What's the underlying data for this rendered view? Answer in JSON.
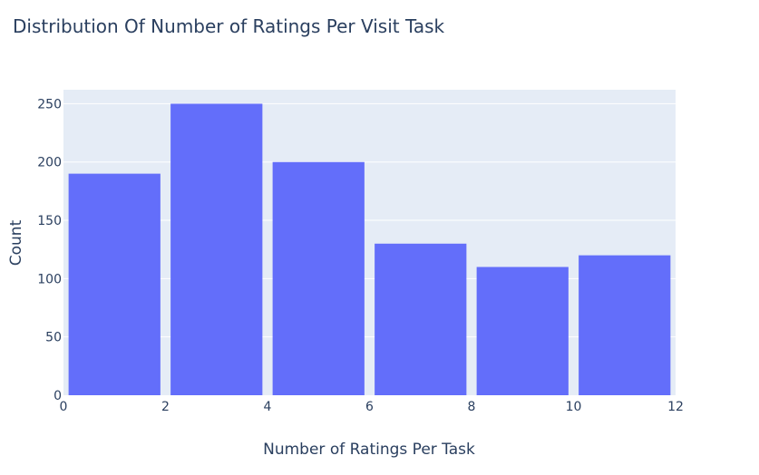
{
  "chart_data": {
    "type": "bar",
    "title": "Distribution Of Number of Ratings Per Visit Task",
    "xlabel": "Number of Ratings Per Task",
    "ylabel": "Count",
    "bins": [
      {
        "x0": 0,
        "x1": 2,
        "value": 190
      },
      {
        "x0": 2,
        "x1": 4,
        "value": 250
      },
      {
        "x0": 4,
        "x1": 6,
        "value": 200
      },
      {
        "x0": 6,
        "x1": 8,
        "value": 130
      },
      {
        "x0": 8,
        "x1": 10,
        "value": 110
      },
      {
        "x0": 10,
        "x1": 12,
        "value": 120
      }
    ],
    "xlim": [
      0,
      12
    ],
    "ylim": [
      0,
      262
    ],
    "xticks": [
      0,
      2,
      4,
      6,
      8,
      10,
      12
    ],
    "yticks": [
      0,
      50,
      100,
      150,
      200,
      250
    ],
    "grid": true,
    "bar_color": "#636efa",
    "plot_bg": "#e5ecf6",
    "gridline_color": "#ffffff"
  }
}
